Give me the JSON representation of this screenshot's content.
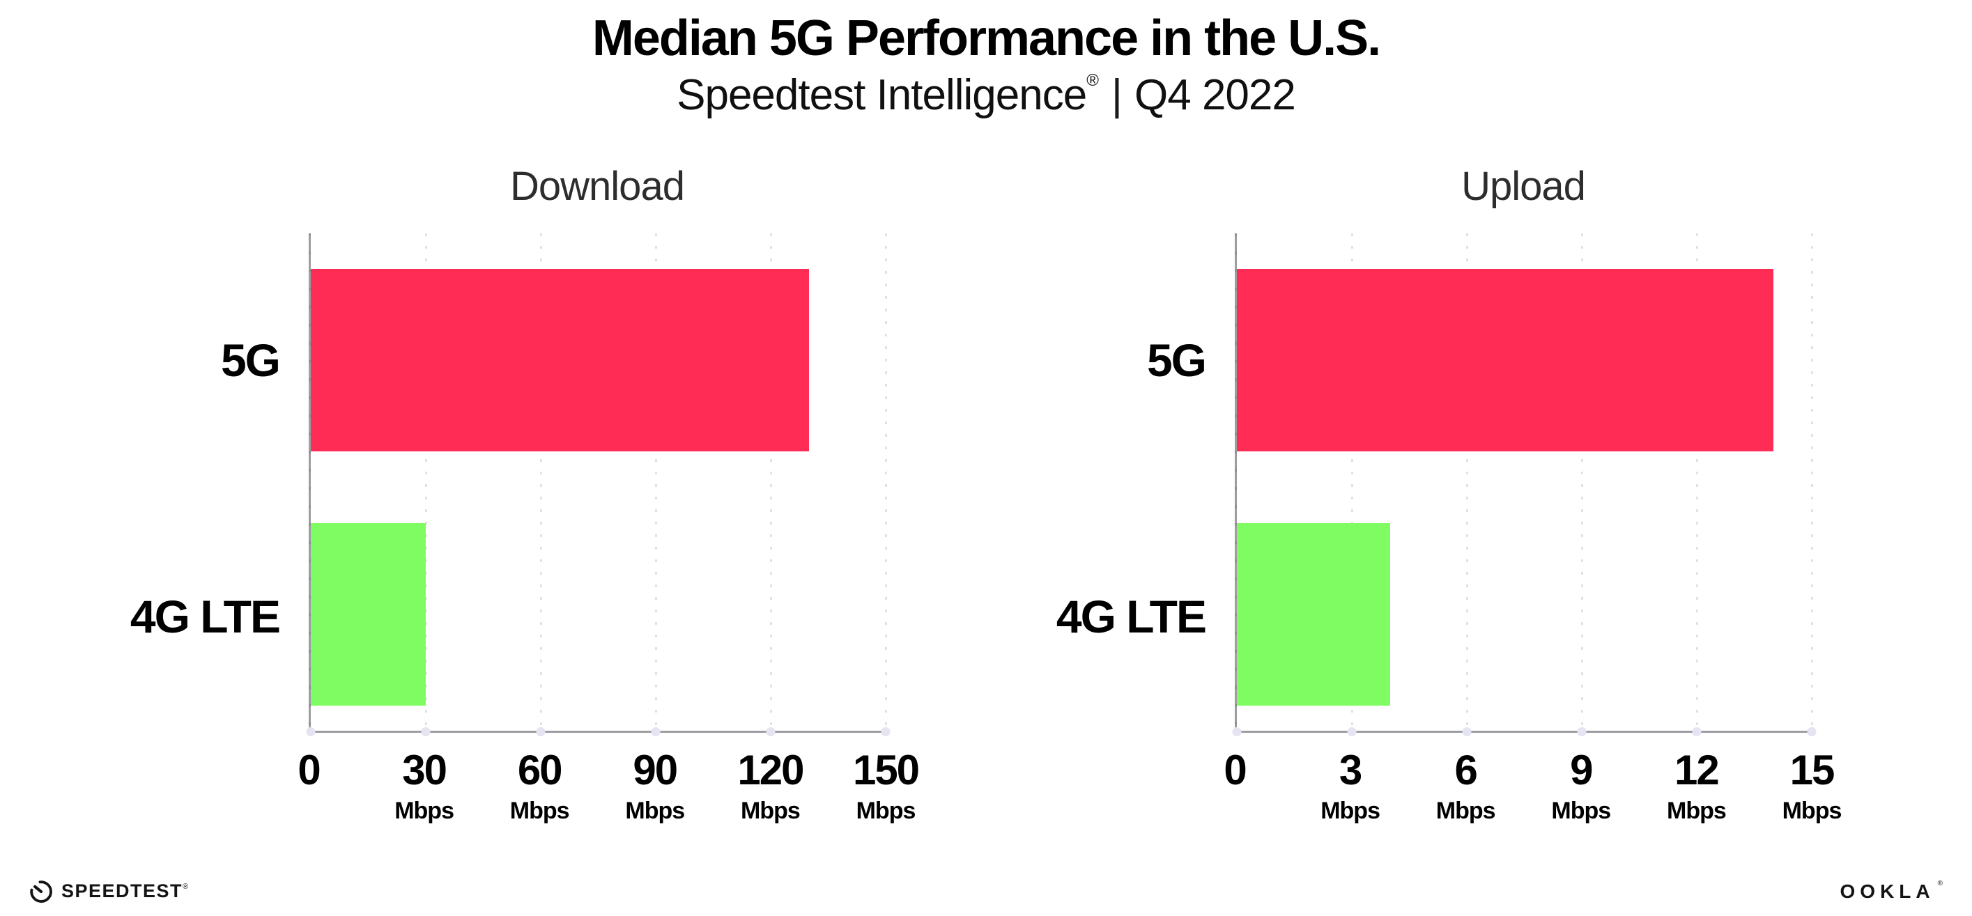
{
  "page": {
    "title": "Median 5G Performance in the U.S.",
    "subtitle_brand": "Speedtest Intelligence",
    "subtitle_reg": "®",
    "subtitle_divider": "|",
    "subtitle_period": "Q4 2022"
  },
  "chart_data": [
    {
      "type": "bar",
      "orientation": "horizontal",
      "title": "Download",
      "categories": [
        "5G",
        "4G LTE"
      ],
      "values": [
        130,
        30
      ],
      "unit": "Mbps",
      "xticks": [
        0,
        30,
        60,
        90,
        120,
        150
      ],
      "xlim": [
        0,
        150
      ],
      "bar_colors": [
        "#ff2d55",
        "#7efc62"
      ],
      "grid": "vertical-dotted",
      "legend": "none"
    },
    {
      "type": "bar",
      "orientation": "horizontal",
      "title": "Upload",
      "categories": [
        "5G",
        "4G LTE"
      ],
      "values": [
        14,
        4
      ],
      "unit": "Mbps",
      "xticks": [
        0,
        3,
        6,
        9,
        12,
        15
      ],
      "xlim": [
        0,
        15
      ],
      "bar_colors": [
        "#ff2d55",
        "#7efc62"
      ],
      "grid": "vertical-dotted",
      "legend": "none"
    }
  ],
  "footer": {
    "speedtest_wordmark": "SPEEDTEST",
    "speedtest_mark": "®",
    "ookla_wordmark": "OOKLA",
    "ookla_mark": "®"
  },
  "colors": {
    "bar_5g": "#ff2d55",
    "bar_4g_lte": "#7efc62",
    "axis": "#9d9da2",
    "gridline": "#e1e1ee",
    "text": "#000000"
  }
}
